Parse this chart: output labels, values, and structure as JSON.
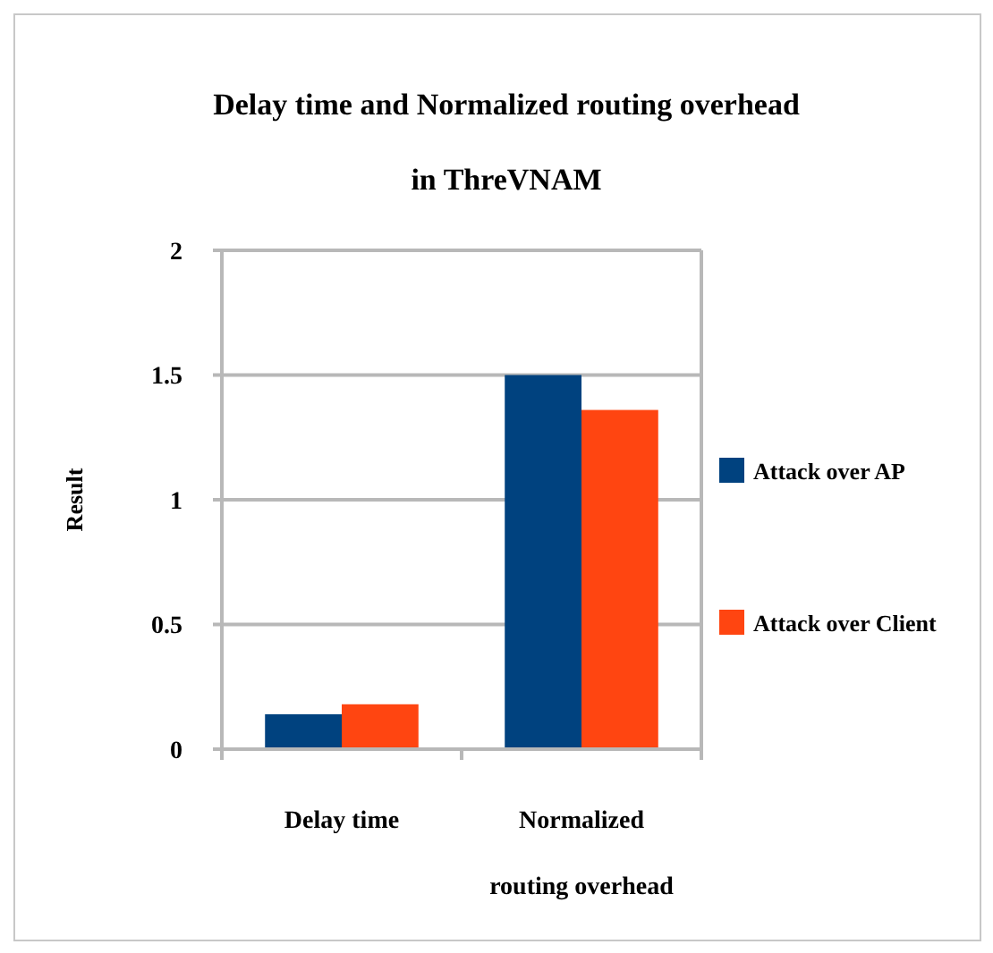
{
  "chart_data": {
    "type": "bar",
    "title": "Delay time and Normalized routing overhead in ThreVNAM",
    "ylabel": "Result",
    "categories": [
      "Delay time",
      "Normalized routing overhead"
    ],
    "series": [
      {
        "name": "Attack over AP",
        "color": "#00427f",
        "values": [
          0.14,
          1.5
        ]
      },
      {
        "name": "Attack over Client",
        "color": "#ff4511",
        "values": [
          0.18,
          1.36
        ]
      }
    ],
    "ylim": [
      0,
      2
    ],
    "yticks": [
      0,
      0.5,
      1,
      1.5,
      2
    ],
    "grid": "y",
    "legend": "right"
  }
}
